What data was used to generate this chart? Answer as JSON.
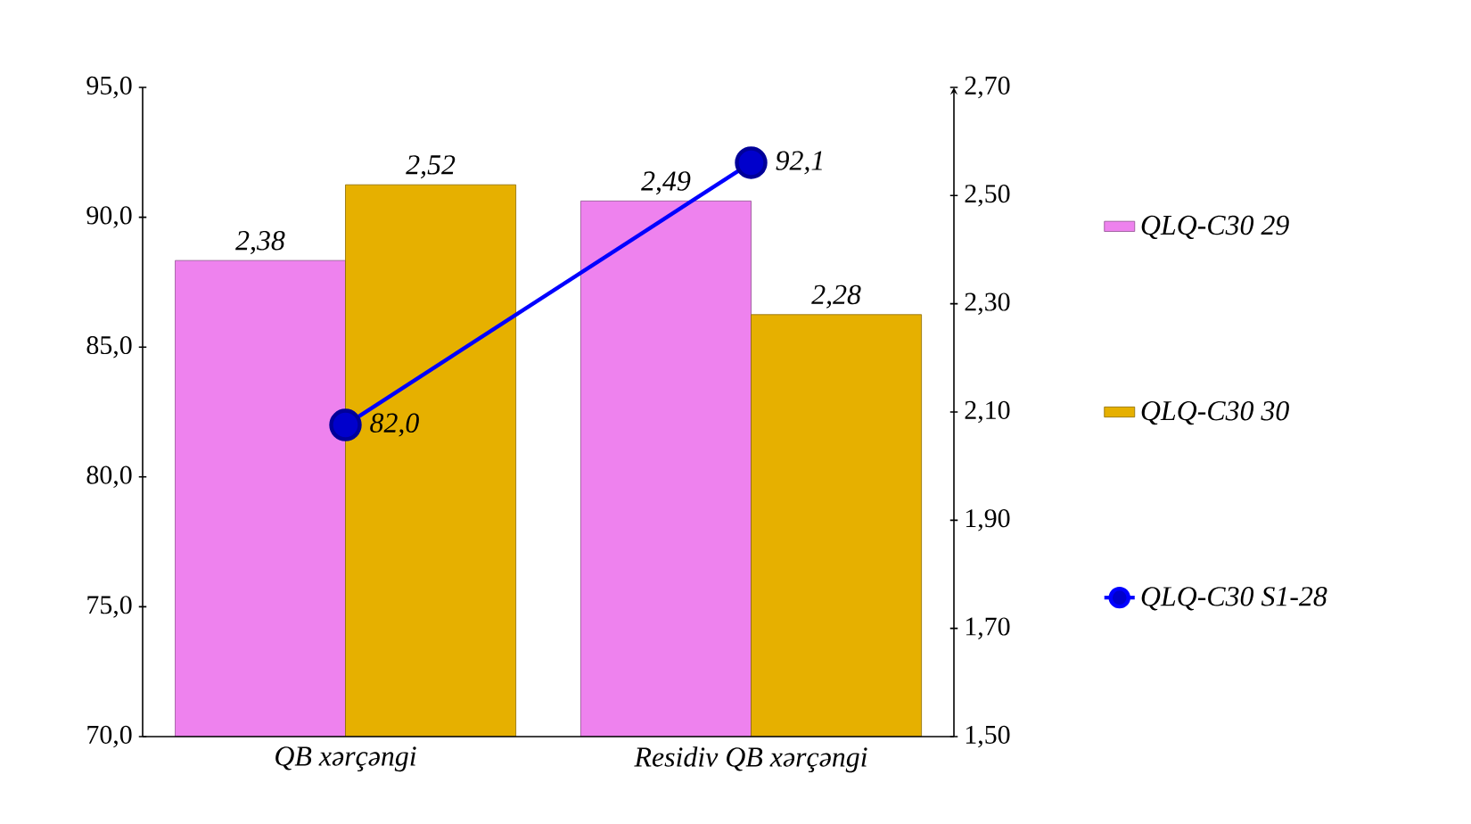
{
  "chart_data": {
    "type": "bar",
    "categories": [
      "QB xərçəngi",
      "Residiv QB xərçəngi"
    ],
    "series": [
      {
        "name": "QLQ-C30 29",
        "color": "#ee82ee",
        "axis": "y2",
        "values": [
          2.38,
          2.49
        ],
        "value_labels": [
          "2,38",
          "2,49"
        ]
      },
      {
        "name": "QLQ-C30 30",
        "color": "#e6b000",
        "axis": "y2",
        "values": [
          2.52,
          2.28
        ],
        "value_labels": [
          "2,52",
          "2,28"
        ]
      },
      {
        "name": "QLQ-C30 S1-28",
        "type": "line",
        "color": "#0000ff",
        "values": [
          82.0,
          92.1
        ],
        "value_labels": [
          "82,0",
          "92,1"
        ]
      }
    ],
    "marker": "circle",
    "legend": "right",
    "ylim": [
      70,
      95
    ],
    "yticks": [
      {
        "value": 70,
        "label": "70,0"
      },
      {
        "value": 75,
        "label": "75,0"
      },
      {
        "value": 80,
        "label": "80,0"
      },
      {
        "value": 85,
        "label": "85,0"
      },
      {
        "value": 90,
        "label": "90,0"
      },
      {
        "value": 95,
        "label": "95,0"
      }
    ],
    "y2lim": [
      1.5,
      2.7
    ],
    "y2ticks": [
      {
        "value": 1.5,
        "label": "1,50"
      },
      {
        "value": 1.7,
        "label": "1,70"
      },
      {
        "value": 1.9,
        "label": "1,90"
      },
      {
        "value": 2.1,
        "label": "2,10"
      },
      {
        "value": 2.3,
        "label": "2,30"
      },
      {
        "value": 2.5,
        "label": "2,50"
      },
      {
        "value": 2.7,
        "label": "2,70"
      }
    ]
  }
}
